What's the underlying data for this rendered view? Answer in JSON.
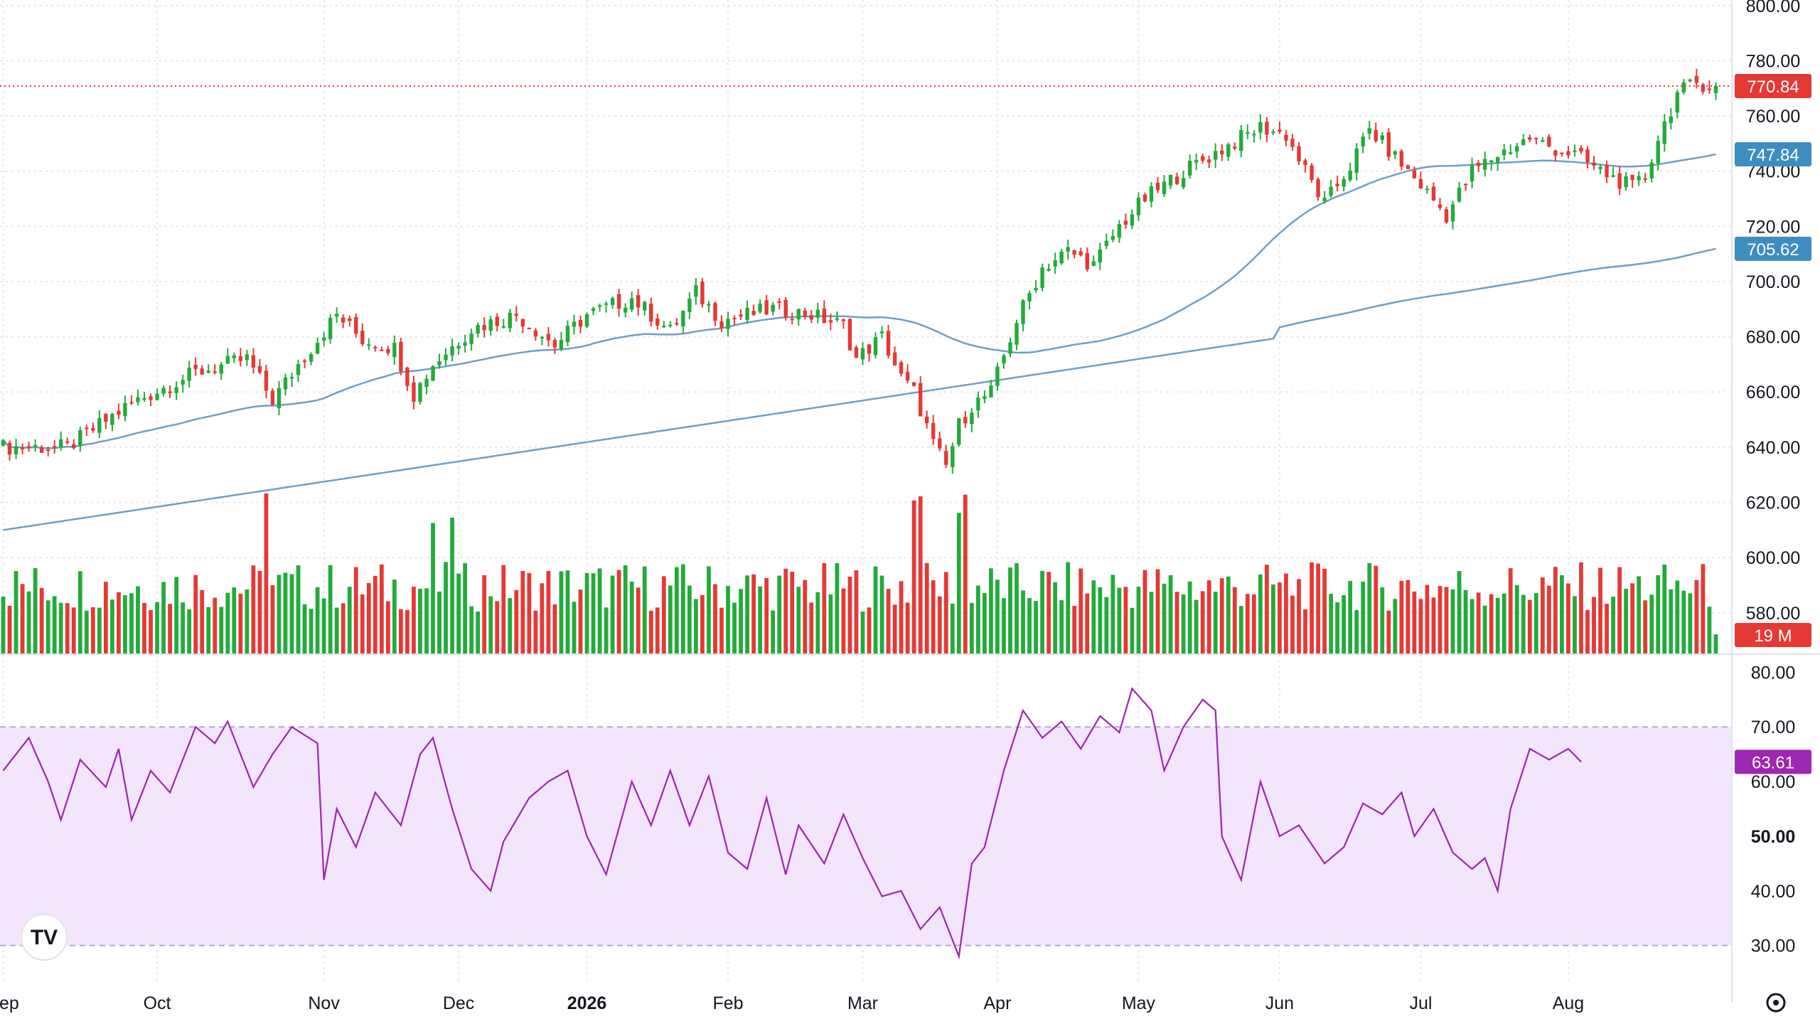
{
  "app": {
    "logo_text": "TV"
  },
  "icons": {
    "settings": "gear-icon",
    "logo": "tradingview-logo"
  },
  "colors": {
    "up": "#22ab3a",
    "down": "#e53935",
    "ma": "#6f9fc5",
    "rsi": "#9c27b0",
    "rsi_band": "#f3e5fb",
    "grid": "#e6e8ec"
  },
  "price_tags": {
    "last": "770.84",
    "ma50": "747.84",
    "ma200": "705.62",
    "volume": "19 M",
    "rsi": "63.61"
  },
  "chart_data": [
    {
      "type": "candlestick",
      "title": "",
      "y_ticks": [
        "580.00",
        "600.00",
        "620.00",
        "640.00",
        "660.00",
        "680.00",
        "700.00",
        "720.00",
        "740.00",
        "760.00",
        "780.00",
        "800.00"
      ],
      "ylim": [
        565,
        802
      ],
      "x_ticks": [
        "Sep",
        "Oct",
        "Nov",
        "Dec",
        "2026",
        "Feb",
        "Mar",
        "Apr",
        "May",
        "Jun",
        "Jul",
        "Aug"
      ],
      "x_tick_sessions": [
        0,
        24,
        50,
        71,
        91,
        113,
        134,
        155,
        177,
        199,
        221,
        244
      ],
      "close_anchors": [
        [
          0,
          640
        ],
        [
          10,
          640
        ],
        [
          20,
          656
        ],
        [
          30,
          667
        ],
        [
          38,
          672
        ],
        [
          42,
          657
        ],
        [
          46,
          670
        ],
        [
          52,
          688
        ],
        [
          56,
          679
        ],
        [
          61,
          676
        ],
        [
          64,
          659
        ],
        [
          67,
          670
        ],
        [
          73,
          683
        ],
        [
          80,
          688
        ],
        [
          86,
          677
        ],
        [
          91,
          688
        ],
        [
          98,
          694
        ],
        [
          104,
          682
        ],
        [
          108,
          696
        ],
        [
          112,
          686
        ],
        [
          120,
          690
        ],
        [
          126,
          688
        ],
        [
          131,
          684
        ],
        [
          133,
          672
        ],
        [
          137,
          680
        ],
        [
          140,
          665
        ],
        [
          142,
          660
        ],
        [
          145,
          641
        ],
        [
          147,
          633
        ],
        [
          149,
          648
        ],
        [
          151,
          655
        ],
        [
          154,
          660
        ],
        [
          158,
          686
        ],
        [
          162,
          705
        ],
        [
          166,
          711
        ],
        [
          170,
          706
        ],
        [
          174,
          720
        ],
        [
          178,
          730
        ],
        [
          184,
          740
        ],
        [
          190,
          748
        ],
        [
          196,
          756
        ],
        [
          200,
          753
        ],
        [
          203,
          740
        ],
        [
          206,
          728
        ],
        [
          210,
          742
        ],
        [
          213,
          755
        ],
        [
          217,
          745
        ],
        [
          221,
          735
        ],
        [
          225,
          724
        ],
        [
          229,
          740
        ],
        [
          233,
          746
        ],
        [
          238,
          752
        ],
        [
          242,
          748
        ],
        [
          245,
          746
        ],
        [
          249,
          740
        ],
        [
          254,
          734
        ],
        [
          256,
          738
        ],
        [
          258,
          752
        ],
        [
          261,
          768
        ],
        [
          264,
          772
        ],
        [
          267,
          770.84
        ]
      ],
      "volume": {
        "max_label": "19 M",
        "last": "19 M"
      },
      "last_price": 770.84
    },
    {
      "type": "line",
      "name": "",
      "y_ticks": [
        "30.00",
        "40.00",
        "50.00",
        "60.00",
        "70.00",
        "80.00"
      ],
      "ylim": [
        28,
        82
      ],
      "band": [
        30,
        70
      ],
      "anchors": [
        [
          0,
          62
        ],
        [
          4,
          68
        ],
        [
          7,
          60
        ],
        [
          9,
          53
        ],
        [
          12,
          64
        ],
        [
          16,
          59
        ],
        [
          18,
          66
        ],
        [
          20,
          53
        ],
        [
          23,
          62
        ],
        [
          26,
          58
        ],
        [
          30,
          70
        ],
        [
          33,
          67
        ],
        [
          35,
          71
        ],
        [
          39,
          59
        ],
        [
          42,
          65
        ],
        [
          45,
          70
        ],
        [
          49,
          67
        ],
        [
          50,
          42
        ],
        [
          52,
          55
        ],
        [
          55,
          48
        ],
        [
          58,
          58
        ],
        [
          62,
          52
        ],
        [
          65,
          65
        ],
        [
          67,
          68
        ],
        [
          70,
          55
        ],
        [
          73,
          44
        ],
        [
          76,
          40
        ],
        [
          78,
          49
        ],
        [
          82,
          57
        ],
        [
          85,
          60
        ],
        [
          88,
          62
        ],
        [
          91,
          50
        ],
        [
          94,
          43
        ],
        [
          98,
          60
        ],
        [
          101,
          52
        ],
        [
          104,
          62
        ],
        [
          107,
          52
        ],
        [
          110,
          61
        ],
        [
          113,
          47
        ],
        [
          116,
          44
        ],
        [
          119,
          57
        ],
        [
          122,
          43
        ],
        [
          124,
          52
        ],
        [
          128,
          45
        ],
        [
          131,
          54
        ],
        [
          134,
          46
        ],
        [
          137,
          39
        ],
        [
          140,
          40
        ],
        [
          143,
          33
        ],
        [
          146,
          37
        ],
        [
          149,
          28
        ],
        [
          151,
          45
        ],
        [
          153,
          48
        ],
        [
          156,
          62
        ],
        [
          159,
          73
        ],
        [
          162,
          68
        ],
        [
          165,
          71
        ],
        [
          168,
          66
        ],
        [
          171,
          72
        ],
        [
          174,
          69
        ],
        [
          176,
          77
        ],
        [
          179,
          73
        ],
        [
          181,
          62
        ],
        [
          184,
          70
        ],
        [
          187,
          75
        ],
        [
          189,
          73
        ],
        [
          190,
          50
        ],
        [
          193,
          42
        ],
        [
          196,
          60
        ],
        [
          199,
          50
        ],
        [
          202,
          52
        ],
        [
          206,
          45
        ],
        [
          209,
          48
        ],
        [
          212,
          56
        ],
        [
          215,
          54
        ],
        [
          218,
          58
        ],
        [
          220,
          50
        ],
        [
          223,
          55
        ],
        [
          226,
          47
        ],
        [
          229,
          44
        ],
        [
          231,
          46
        ],
        [
          233,
          40
        ],
        [
          235,
          55
        ],
        [
          238,
          66
        ],
        [
          241,
          64
        ],
        [
          244,
          66
        ],
        [
          246,
          63.61
        ]
      ],
      "last": 63.61
    }
  ]
}
